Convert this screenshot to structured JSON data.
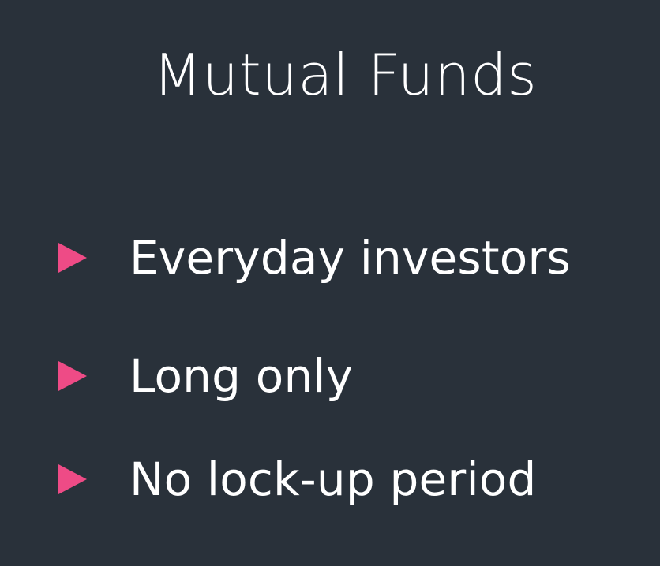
{
  "slide": {
    "title": "Mutual Funds",
    "bullets": [
      {
        "text": "Everyday investors",
        "icon": "triangle-right-icon"
      },
      {
        "text": "Long only",
        "icon": "triangle-right-icon"
      },
      {
        "text": "No lock-up period",
        "icon": "triangle-right-icon"
      }
    ],
    "colors": {
      "background": "#29313a",
      "text": "#ffffff",
      "accent": "#ee4b86"
    }
  }
}
